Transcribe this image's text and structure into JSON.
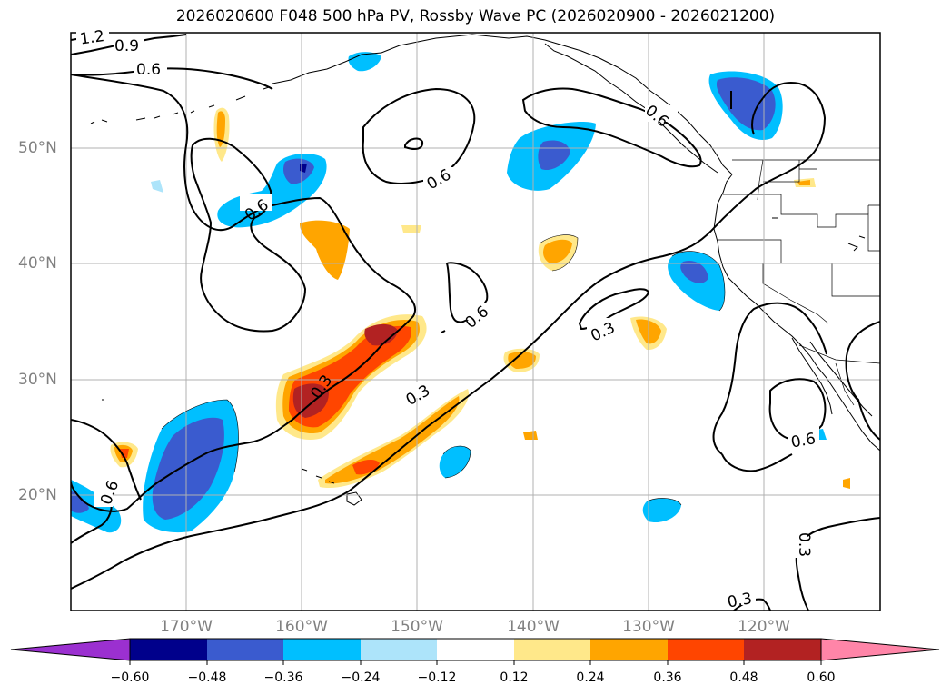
{
  "title": "2026020600 F048 500 hPa PV, Rossby Wave PC (2026020900 - 2026021200)",
  "map": {
    "lon_labels": [
      "170°W",
      "160°W",
      "150°W",
      "140°W",
      "130°W",
      "120°W"
    ],
    "lat_labels": [
      "50°N",
      "40°N",
      "30°N",
      "20°N"
    ],
    "contour_labels": [
      "1.2",
      "0.9",
      "0.6",
      "0.6",
      "0.6",
      "0.6",
      "0.3",
      "0.6",
      "0.3",
      "0.3",
      "0.6",
      "0.3",
      "0.6",
      "0.3"
    ],
    "colors": {
      "land_outline": "#000000",
      "grid": "#b0b0b0",
      "contour": "#000000"
    }
  },
  "colorbar": {
    "ticks": [
      "−0.60",
      "−0.48",
      "−0.36",
      "−0.24",
      "−0.12",
      "0.12",
      "0.24",
      "0.36",
      "0.48",
      "0.60"
    ],
    "colors": [
      "#9b30d0",
      "#00008b",
      "#3a5bcf",
      "#00bfff",
      "#ade4fa",
      "#ffffff",
      "#ffe88a",
      "#ffa500",
      "#ff4500",
      "#b22222",
      "#ff85a8"
    ]
  }
}
